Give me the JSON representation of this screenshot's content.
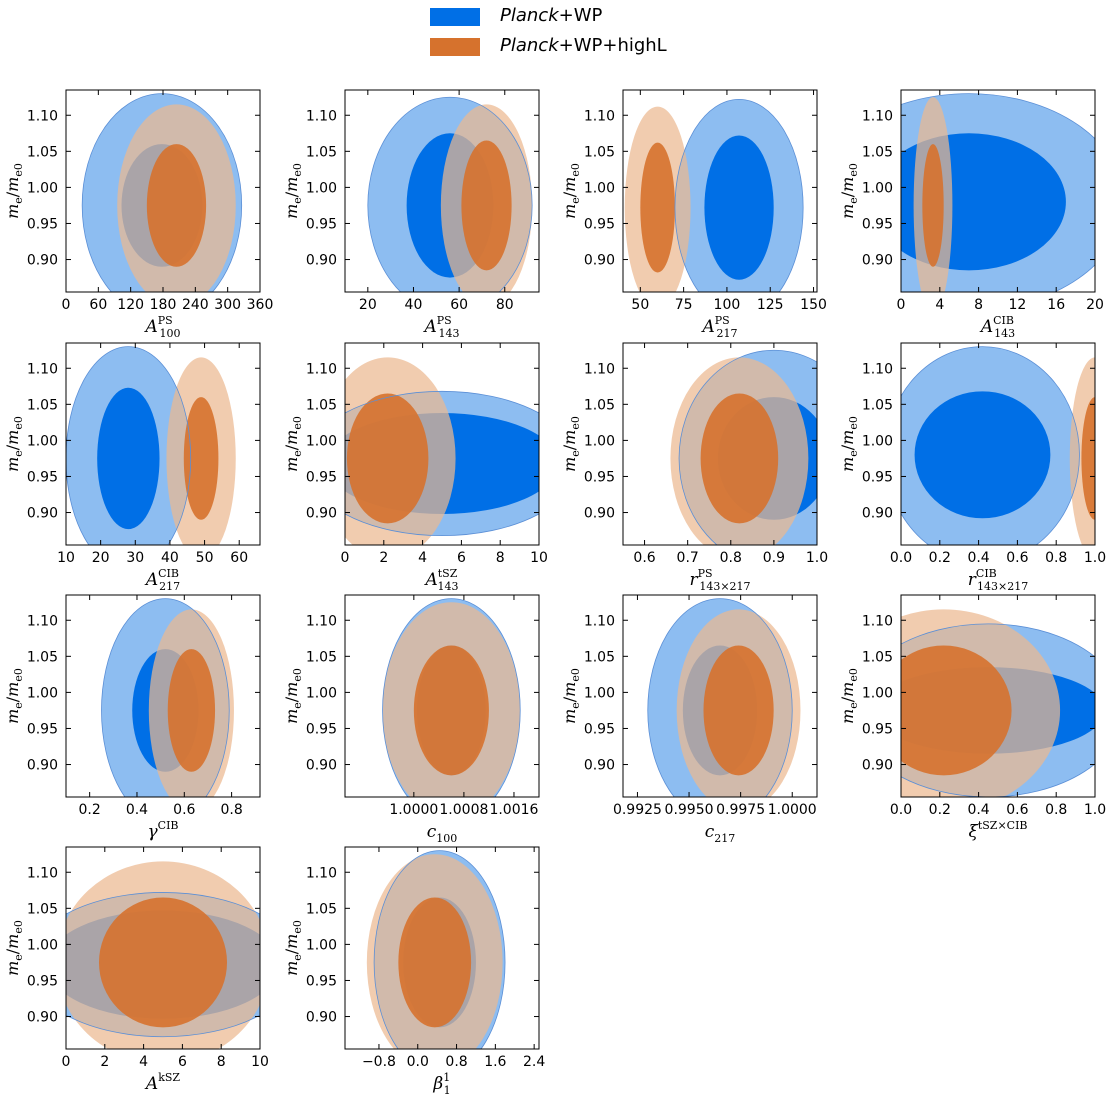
{
  "legend": {
    "items": [
      {
        "name_italic": "Planck",
        "name_rest": "+WP",
        "color": "#006fe6"
      },
      {
        "name_italic": "Planck",
        "name_rest": "+WP+highL",
        "color": "#d6722d"
      }
    ]
  },
  "colors": {
    "blue_inner": "#006fe6",
    "blue_outer": "#8dbdf1",
    "orange_inner": "#d6722d",
    "orange_outer": "#ecb990",
    "overlap_inner": "#b7683d",
    "overlap_outer": "#c8b7b0"
  },
  "chart_data": [
    {
      "type": "contour",
      "xlabel": "A",
      "xsup": "PS",
      "xsub": "100",
      "ylabel": "me/me0",
      "xlim": [
        0,
        360
      ],
      "ylim": [
        0.855,
        1.135
      ],
      "xticks": [
        "0",
        "60",
        "120",
        "180",
        "240",
        "300",
        "360"
      ],
      "yticks": [
        "0.90",
        "0.95",
        "1.00",
        "1.05",
        "1.10"
      ],
      "series": [
        {
          "name": "Planck+WP",
          "x_center": 178,
          "x_halfwidth_68": 75,
          "x_halfwidth_95": 148,
          "y_center": 0.975,
          "y_halfwidth_68": 0.085,
          "y_halfwidth_95": 0.155
        },
        {
          "name": "Planck+WP+highL",
          "x_center": 205,
          "x_halfwidth_68": 55,
          "x_halfwidth_95": 110,
          "y_center": 0.975,
          "y_halfwidth_68": 0.085,
          "y_halfwidth_95": 0.14
        }
      ]
    },
    {
      "type": "contour",
      "xlabel": "A",
      "xsup": "PS",
      "xsub": "143",
      "ylabel": "me/me0",
      "xlim": [
        10,
        95
      ],
      "ylim": [
        0.855,
        1.135
      ],
      "xticks": [
        "20",
        "40",
        "60",
        "80"
      ],
      "yticks": [
        "0.90",
        "0.95",
        "1.00",
        "1.05",
        "1.10"
      ],
      "series": [
        {
          "name": "Planck+WP",
          "x_center": 56,
          "x_halfwidth_68": 19,
          "x_halfwidth_95": 36,
          "y_center": 0.975,
          "y_halfwidth_68": 0.1,
          "y_halfwidth_95": 0.15
        },
        {
          "name": "Planck+WP+highL",
          "x_center": 72,
          "x_halfwidth_68": 11,
          "x_halfwidth_95": 20,
          "y_center": 0.975,
          "y_halfwidth_68": 0.09,
          "y_halfwidth_95": 0.14
        }
      ]
    },
    {
      "type": "contour",
      "xlabel": "A",
      "xsup": "PS",
      "xsub": "217",
      "ylabel": "me/me0",
      "xlim": [
        40,
        152
      ],
      "ylim": [
        0.855,
        1.135
      ],
      "xticks": [
        "50",
        "75",
        "100",
        "125",
        "150"
      ],
      "yticks": [
        "0.90",
        "0.95",
        "1.00",
        "1.05",
        "1.10"
      ],
      "series": [
        {
          "name": "Planck+WP",
          "x_center": 107,
          "x_halfwidth_68": 20,
          "x_halfwidth_95": 37,
          "y_center": 0.972,
          "y_halfwidth_68": 0.1,
          "y_halfwidth_95": 0.15
        },
        {
          "name": "Planck+WP+highL",
          "x_center": 60,
          "x_halfwidth_68": 10,
          "x_halfwidth_95": 19,
          "y_center": 0.972,
          "y_halfwidth_68": 0.09,
          "y_halfwidth_95": 0.14
        }
      ]
    },
    {
      "type": "contour",
      "xlabel": "A",
      "xsup": "CIB",
      "xsub": "143",
      "ylabel": "me/me0",
      "xlim": [
        0,
        20
      ],
      "ylim": [
        0.855,
        1.135
      ],
      "xticks": [
        "0",
        "4",
        "8",
        "12",
        "16",
        "20"
      ],
      "yticks": [
        "0.90",
        "0.95",
        "1.00",
        "1.05",
        "1.10"
      ],
      "series": [
        {
          "name": "Planck+WP",
          "x_center": 7,
          "x_halfwidth_68": 10,
          "x_halfwidth_95": 16,
          "y_center": 0.98,
          "y_halfwidth_68": 0.095,
          "y_halfwidth_95": 0.15
        },
        {
          "name": "Planck+WP+highL",
          "x_center": 3.3,
          "x_halfwidth_68": 1.1,
          "x_halfwidth_95": 2.0,
          "y_center": 0.975,
          "y_halfwidth_68": 0.085,
          "y_halfwidth_95": 0.15
        }
      ]
    },
    {
      "type": "contour",
      "xlabel": "A",
      "xsup": "CIB",
      "xsub": "217",
      "ylabel": "me/me0",
      "xlim": [
        10,
        66
      ],
      "ylim": [
        0.855,
        1.135
      ],
      "xticks": [
        "10",
        "20",
        "30",
        "40",
        "50",
        "60"
      ],
      "yticks": [
        "0.90",
        "0.95",
        "1.00",
        "1.05",
        "1.10"
      ],
      "series": [
        {
          "name": "Planck+WP",
          "x_center": 28,
          "x_halfwidth_68": 9,
          "x_halfwidth_95": 18,
          "y_center": 0.975,
          "y_halfwidth_68": 0.098,
          "y_halfwidth_95": 0.155
        },
        {
          "name": "Planck+WP+highL",
          "x_center": 49,
          "x_halfwidth_68": 5,
          "x_halfwidth_95": 10,
          "y_center": 0.975,
          "y_halfwidth_68": 0.085,
          "y_halfwidth_95": 0.14
        }
      ]
    },
    {
      "type": "contour",
      "xlabel": "A",
      "xsup": "tSZ",
      "xsub": "143",
      "ylabel": "me/me0",
      "xlim": [
        0,
        10
      ],
      "ylim": [
        0.855,
        1.135
      ],
      "xticks": [
        "0",
        "2",
        "4",
        "6",
        "8",
        "10"
      ],
      "yticks": [
        "0.90",
        "0.95",
        "1.00",
        "1.05",
        "1.10"
      ],
      "series": [
        {
          "name": "Planck+WP",
          "x_center": 5,
          "x_halfwidth_68": 6,
          "x_halfwidth_95": 7,
          "y_center": 0.968,
          "y_halfwidth_68": 0.07,
          "y_halfwidth_95": 0.1
        },
        {
          "name": "Planck+WP+highL",
          "x_center": 2.2,
          "x_halfwidth_68": 2.1,
          "x_halfwidth_95": 3.5,
          "y_center": 0.975,
          "y_halfwidth_68": 0.09,
          "y_halfwidth_95": 0.14
        }
      ]
    },
    {
      "type": "contour",
      "xlabel": "r",
      "xsup": "PS",
      "xsub": "143×217",
      "ylabel": "me/me0",
      "xlim": [
        0.55,
        1.0
      ],
      "ylim": [
        0.855,
        1.135
      ],
      "xticks": [
        "0.6",
        "0.7",
        "0.8",
        "0.9",
        "1.0"
      ],
      "yticks": [
        "0.90",
        "0.95",
        "1.00",
        "1.05",
        "1.10"
      ],
      "series": [
        {
          "name": "Planck+WP",
          "x_center": 0.9,
          "x_halfwidth_68": 0.13,
          "x_halfwidth_95": 0.22,
          "y_center": 0.975,
          "y_halfwidth_68": 0.085,
          "y_halfwidth_95": 0.15
        },
        {
          "name": "Planck+WP+highL",
          "x_center": 0.82,
          "x_halfwidth_68": 0.09,
          "x_halfwidth_95": 0.16,
          "y_center": 0.975,
          "y_halfwidth_68": 0.09,
          "y_halfwidth_95": 0.14
        }
      ]
    },
    {
      "type": "contour",
      "xlabel": "r",
      "xsup": "CIB",
      "xsub": "143×217",
      "ylabel": "me/me0",
      "xlim": [
        0.0,
        1.0
      ],
      "ylim": [
        0.855,
        1.135
      ],
      "xticks": [
        "0.0",
        "0.2",
        "0.4",
        "0.6",
        "0.8",
        "1.0"
      ],
      "yticks": [
        "0.90",
        "0.95",
        "1.00",
        "1.05",
        "1.10"
      ],
      "series": [
        {
          "name": "Planck+WP",
          "x_center": 0.42,
          "x_halfwidth_68": 0.35,
          "x_halfwidth_95": 0.5,
          "y_center": 0.98,
          "y_halfwidth_68": 0.088,
          "y_halfwidth_95": 0.15
        },
        {
          "name": "Planck+WP+highL",
          "x_center": 1.0,
          "x_halfwidth_68": 0.07,
          "x_halfwidth_95": 0.13,
          "y_center": 0.975,
          "y_halfwidth_68": 0.085,
          "y_halfwidth_95": 0.14
        }
      ]
    },
    {
      "type": "contour",
      "xlabel": "γ",
      "xsup": "CIB",
      "xsub": "",
      "ylabel": "me/me0",
      "xlim": [
        0.1,
        0.92
      ],
      "ylim": [
        0.855,
        1.135
      ],
      "xticks": [
        "0.2",
        "0.4",
        "0.6",
        "0.8"
      ],
      "yticks": [
        "0.90",
        "0.95",
        "1.00",
        "1.05",
        "1.10"
      ],
      "series": [
        {
          "name": "Planck+WP",
          "x_center": 0.52,
          "x_halfwidth_68": 0.14,
          "x_halfwidth_95": 0.27,
          "y_center": 0.975,
          "y_halfwidth_68": 0.085,
          "y_halfwidth_95": 0.155
        },
        {
          "name": "Planck+WP+highL",
          "x_center": 0.63,
          "x_halfwidth_68": 0.1,
          "x_halfwidth_95": 0.18,
          "y_center": 0.975,
          "y_halfwidth_68": 0.085,
          "y_halfwidth_95": 0.14
        }
      ]
    },
    {
      "type": "contour",
      "xlabel": "c",
      "xsup": "",
      "xsub": "100",
      "ylabel": "me/me0",
      "xlim": [
        0.9989,
        1.002
      ],
      "ylim": [
        0.855,
        1.135
      ],
      "xticks": [
        "1.0000",
        "1.0008",
        "1.0016"
      ],
      "yticks": [
        "0.90",
        "0.95",
        "1.00",
        "1.05",
        "1.10"
      ],
      "series": [
        {
          "name": "Planck+WP",
          "x_center": 1.0006,
          "x_halfwidth_68": 0.00055,
          "x_halfwidth_95": 0.0011,
          "y_center": 0.975,
          "y_halfwidth_68": 0.09,
          "y_halfwidth_95": 0.155
        },
        {
          "name": "Planck+WP+highL",
          "x_center": 1.0006,
          "x_halfwidth_68": 0.0006,
          "x_halfwidth_95": 0.0011,
          "y_center": 0.975,
          "y_halfwidth_68": 0.09,
          "y_halfwidth_95": 0.15
        }
      ]
    },
    {
      "type": "contour",
      "xlabel": "c",
      "xsup": "",
      "xsub": "217",
      "ylabel": "me/me0",
      "xlim": [
        0.9918,
        1.0012
      ],
      "ylim": [
        0.855,
        1.135
      ],
      "xticks": [
        "0.9925",
        "0.9950",
        "0.9975",
        "1.0000"
      ],
      "yticks": [
        "0.90",
        "0.95",
        "1.00",
        "1.05",
        "1.10"
      ],
      "series": [
        {
          "name": "Planck+WP",
          "x_center": 0.9965,
          "x_halfwidth_68": 0.0018,
          "x_halfwidth_95": 0.0035,
          "y_center": 0.975,
          "y_halfwidth_68": 0.09,
          "y_halfwidth_95": 0.155
        },
        {
          "name": "Planck+WP+highL",
          "x_center": 0.9974,
          "x_halfwidth_68": 0.0017,
          "x_halfwidth_95": 0.003,
          "y_center": 0.975,
          "y_halfwidth_68": 0.09,
          "y_halfwidth_95": 0.14
        }
      ]
    },
    {
      "type": "contour",
      "xlabel": "ξ",
      "xsup": "tSZ×CIB",
      "xsub": "",
      "ylabel": "me/me0",
      "xlim": [
        0.0,
        1.0
      ],
      "ylim": [
        0.855,
        1.135
      ],
      "xticks": [
        "0.0",
        "0.2",
        "0.4",
        "0.6",
        "0.8",
        "1.0"
      ],
      "yticks": [
        "0.90",
        "0.95",
        "1.00",
        "1.05",
        "1.10"
      ],
      "series": [
        {
          "name": "Planck+WP",
          "x_center": 0.45,
          "x_halfwidth_68": 0.6,
          "x_halfwidth_95": 0.7,
          "y_center": 0.975,
          "y_halfwidth_68": 0.06,
          "y_halfwidth_95": 0.12
        },
        {
          "name": "Planck+WP+highL",
          "x_center": 0.22,
          "x_halfwidth_68": 0.35,
          "x_halfwidth_95": 0.6,
          "y_center": 0.975,
          "y_halfwidth_68": 0.09,
          "y_halfwidth_95": 0.14
        }
      ]
    },
    {
      "type": "contour",
      "xlabel": "A",
      "xsup": "kSZ",
      "xsub": "",
      "ylabel": "me/me0",
      "xlim": [
        0,
        10
      ],
      "ylim": [
        0.855,
        1.135
      ],
      "xticks": [
        "0",
        "2",
        "4",
        "6",
        "8",
        "10"
      ],
      "yticks": [
        "0.90",
        "0.95",
        "1.00",
        "1.05",
        "1.10"
      ],
      "series": [
        {
          "name": "Planck+WP",
          "x_center": 5,
          "x_halfwidth_68": 6,
          "x_halfwidth_95": 7,
          "y_center": 0.972,
          "y_halfwidth_68": 0.075,
          "y_halfwidth_95": 0.1
        },
        {
          "name": "Planck+WP+highL",
          "x_center": 5,
          "x_halfwidth_68": 3.3,
          "x_halfwidth_95": 5.5,
          "y_center": 0.975,
          "y_halfwidth_68": 0.09,
          "y_halfwidth_95": 0.14
        }
      ]
    },
    {
      "type": "contour",
      "xlabel": "β",
      "xsup": "1",
      "xsub": "1",
      "ylabel": "me/me0",
      "xlim": [
        -1.5,
        2.5
      ],
      "ylim": [
        0.855,
        1.135
      ],
      "xticks": [
        "−0.8",
        "0.0",
        "0.8",
        "1.6",
        "2.4"
      ],
      "yticks": [
        "0.90",
        "0.95",
        "1.00",
        "1.05",
        "1.10"
      ],
      "series": [
        {
          "name": "Planck+WP",
          "x_center": 0.45,
          "x_halfwidth_68": 0.75,
          "x_halfwidth_95": 1.35,
          "y_center": 0.975,
          "y_halfwidth_68": 0.09,
          "y_halfwidth_95": 0.155
        },
        {
          "name": "Planck+WP+highL",
          "x_center": 0.35,
          "x_halfwidth_68": 0.75,
          "x_halfwidth_95": 1.4,
          "y_center": 0.975,
          "y_halfwidth_68": 0.09,
          "y_halfwidth_95": 0.15
        }
      ]
    }
  ]
}
